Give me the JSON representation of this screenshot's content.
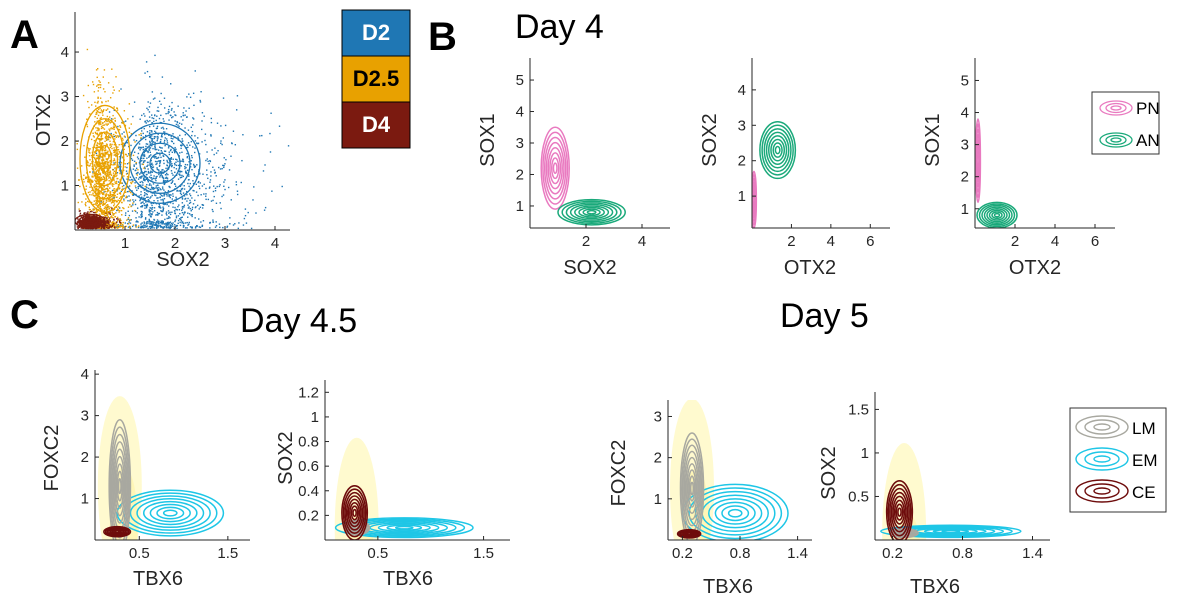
{
  "panel_letters": {
    "a": "A",
    "b": "B",
    "c": "C"
  },
  "titles": {
    "day4": "Day 4",
    "day45": "Day 4.5",
    "day5": "Day 5"
  },
  "colors": {
    "D2": "#1f77b4",
    "D2.5": "#e8a100",
    "D4": "#7b1a10",
    "PN": "#e97ac0",
    "AN": "#1aa97a",
    "LM": "#a8a8a0",
    "EM": "#1ec6e6",
    "CE": "#6e0c0c",
    "density": "#fff6a8"
  },
  "legend_days": {
    "items": [
      "D2",
      "D2.5",
      "D4"
    ]
  },
  "legend_b": {
    "items": [
      "PN",
      "AN"
    ]
  },
  "legend_c": {
    "items": [
      "LM",
      "EM",
      "CE"
    ]
  },
  "chart_data": [
    {
      "id": "A",
      "type": "scatter",
      "title": "",
      "xlabel": "SOX2",
      "ylabel": "OTX2",
      "xlim": [
        0,
        4.3
      ],
      "ylim": [
        0,
        4.9
      ],
      "xticks": [
        "1",
        "2",
        "3",
        "4"
      ],
      "yticks": [
        "1",
        "2",
        "3",
        "4"
      ],
      "series": [
        {
          "name": "D2",
          "contour_center": [
            1.7,
            1.5
          ],
          "contour_spread": [
            0.8,
            0.9
          ]
        },
        {
          "name": "D2.5",
          "contour_center": [
            0.6,
            1.6
          ],
          "contour_spread": [
            0.5,
            1.2
          ]
        },
        {
          "name": "D4",
          "contour_center": [
            0.3,
            0.2
          ],
          "contour_spread": [
            0.3,
            0.15
          ]
        }
      ]
    },
    {
      "id": "B1",
      "type": "contour",
      "xlabel": "SOX2",
      "ylabel": "SOX1",
      "xlim": [
        0,
        5
      ],
      "ylim": [
        0.3,
        5.7
      ],
      "xticks": [
        "2",
        "4"
      ],
      "yticks": [
        "1",
        "2",
        "3",
        "4",
        "5"
      ],
      "series": [
        {
          "name": "PN",
          "center": [
            0.9,
            2.2
          ],
          "spread": [
            0.5,
            1.3
          ]
        },
        {
          "name": "AN",
          "center": [
            2.2,
            0.8
          ],
          "spread": [
            1.2,
            0.4
          ]
        }
      ]
    },
    {
      "id": "B2",
      "type": "contour",
      "xlabel": "OTX2",
      "ylabel": "SOX2",
      "xlim": [
        0,
        7
      ],
      "ylim": [
        0.1,
        4.9
      ],
      "xticks": [
        "2",
        "4",
        "6"
      ],
      "yticks": [
        "1",
        "2",
        "3",
        "4"
      ],
      "series": [
        {
          "name": "PN",
          "center": [
            0.1,
            0.9
          ],
          "spread": [
            0.12,
            0.8
          ]
        },
        {
          "name": "AN",
          "center": [
            1.3,
            2.3
          ],
          "spread": [
            0.9,
            0.8
          ]
        }
      ]
    },
    {
      "id": "B3",
      "type": "contour",
      "xlabel": "OTX2",
      "ylabel": "SOX1",
      "xlim": [
        0,
        7
      ],
      "ylim": [
        0.4,
        5.7
      ],
      "xticks": [
        "2",
        "4",
        "6"
      ],
      "yticks": [
        "1",
        "2",
        "3",
        "4",
        "5"
      ],
      "series": [
        {
          "name": "PN",
          "center": [
            0.15,
            2.5
          ],
          "spread": [
            0.12,
            1.3
          ]
        },
        {
          "name": "AN",
          "center": [
            1.1,
            0.8
          ],
          "spread": [
            1.0,
            0.4
          ]
        }
      ]
    },
    {
      "id": "C1",
      "type": "contour",
      "xlabel": "TBX6",
      "ylabel": "FOXC2",
      "xlim": [
        0,
        1.75
      ],
      "ylim": [
        0,
        4.1
      ],
      "xticks": [
        "0.5",
        "1.5"
      ],
      "yticks": [
        "1",
        "2",
        "3",
        "4"
      ],
      "series": [
        {
          "name": "LM",
          "center": [
            0.28,
            1.3
          ],
          "spread": [
            0.12,
            1.6
          ]
        },
        {
          "name": "EM",
          "center": [
            0.85,
            0.65
          ],
          "spread": [
            0.6,
            0.55
          ]
        },
        {
          "name": "CE",
          "center": [
            0.25,
            0.2
          ],
          "spread": [
            0.15,
            0.12
          ]
        }
      ]
    },
    {
      "id": "C2",
      "type": "contour",
      "xlabel": "TBX6",
      "ylabel": "SOX2",
      "xlim": [
        0,
        1.75
      ],
      "ylim": [
        0,
        1.3
      ],
      "xticks": [
        "0.5",
        "1.5"
      ],
      "yticks": [
        "0.2",
        "0.4",
        "0.6",
        "0.8",
        "1",
        "1.2"
      ],
      "series": [
        {
          "name": "LM",
          "center": [
            0.3,
            0.1
          ],
          "spread": [
            0.12,
            0.06
          ]
        },
        {
          "name": "EM",
          "center": [
            0.75,
            0.1
          ],
          "spread": [
            0.65,
            0.08
          ]
        },
        {
          "name": "CE",
          "center": [
            0.28,
            0.22
          ],
          "spread": [
            0.12,
            0.22
          ]
        }
      ]
    },
    {
      "id": "C3",
      "type": "contour",
      "xlabel": "TBX6",
      "ylabel": "FOXC2",
      "xlim": [
        0.05,
        1.55
      ],
      "ylim": [
        0,
        3.4
      ],
      "xticks": [
        "0.2",
        "0.8",
        "1.4"
      ],
      "yticks": [
        "1",
        "2",
        "3"
      ],
      "series": [
        {
          "name": "LM",
          "center": [
            0.3,
            1.25
          ],
          "spread": [
            0.12,
            1.35
          ]
        },
        {
          "name": "EM",
          "center": [
            0.75,
            0.65
          ],
          "spread": [
            0.55,
            0.7
          ]
        },
        {
          "name": "CE",
          "center": [
            0.27,
            0.15
          ],
          "spread": [
            0.12,
            0.1
          ]
        }
      ]
    },
    {
      "id": "C4",
      "type": "contour",
      "xlabel": "TBX6",
      "ylabel": "SOX2",
      "xlim": [
        0.05,
        1.55
      ],
      "ylim": [
        0,
        1.7
      ],
      "xticks": [
        "0.2",
        "0.8",
        "1.4"
      ],
      "yticks": [
        "0.5",
        "1",
        "1.5"
      ],
      "series": [
        {
          "name": "LM",
          "center": [
            0.3,
            0.08
          ],
          "spread": [
            0.12,
            0.05
          ]
        },
        {
          "name": "EM",
          "center": [
            0.7,
            0.1
          ],
          "spread": [
            0.6,
            0.07
          ]
        },
        {
          "name": "CE",
          "center": [
            0.26,
            0.32
          ],
          "spread": [
            0.11,
            0.36
          ]
        }
      ]
    }
  ]
}
